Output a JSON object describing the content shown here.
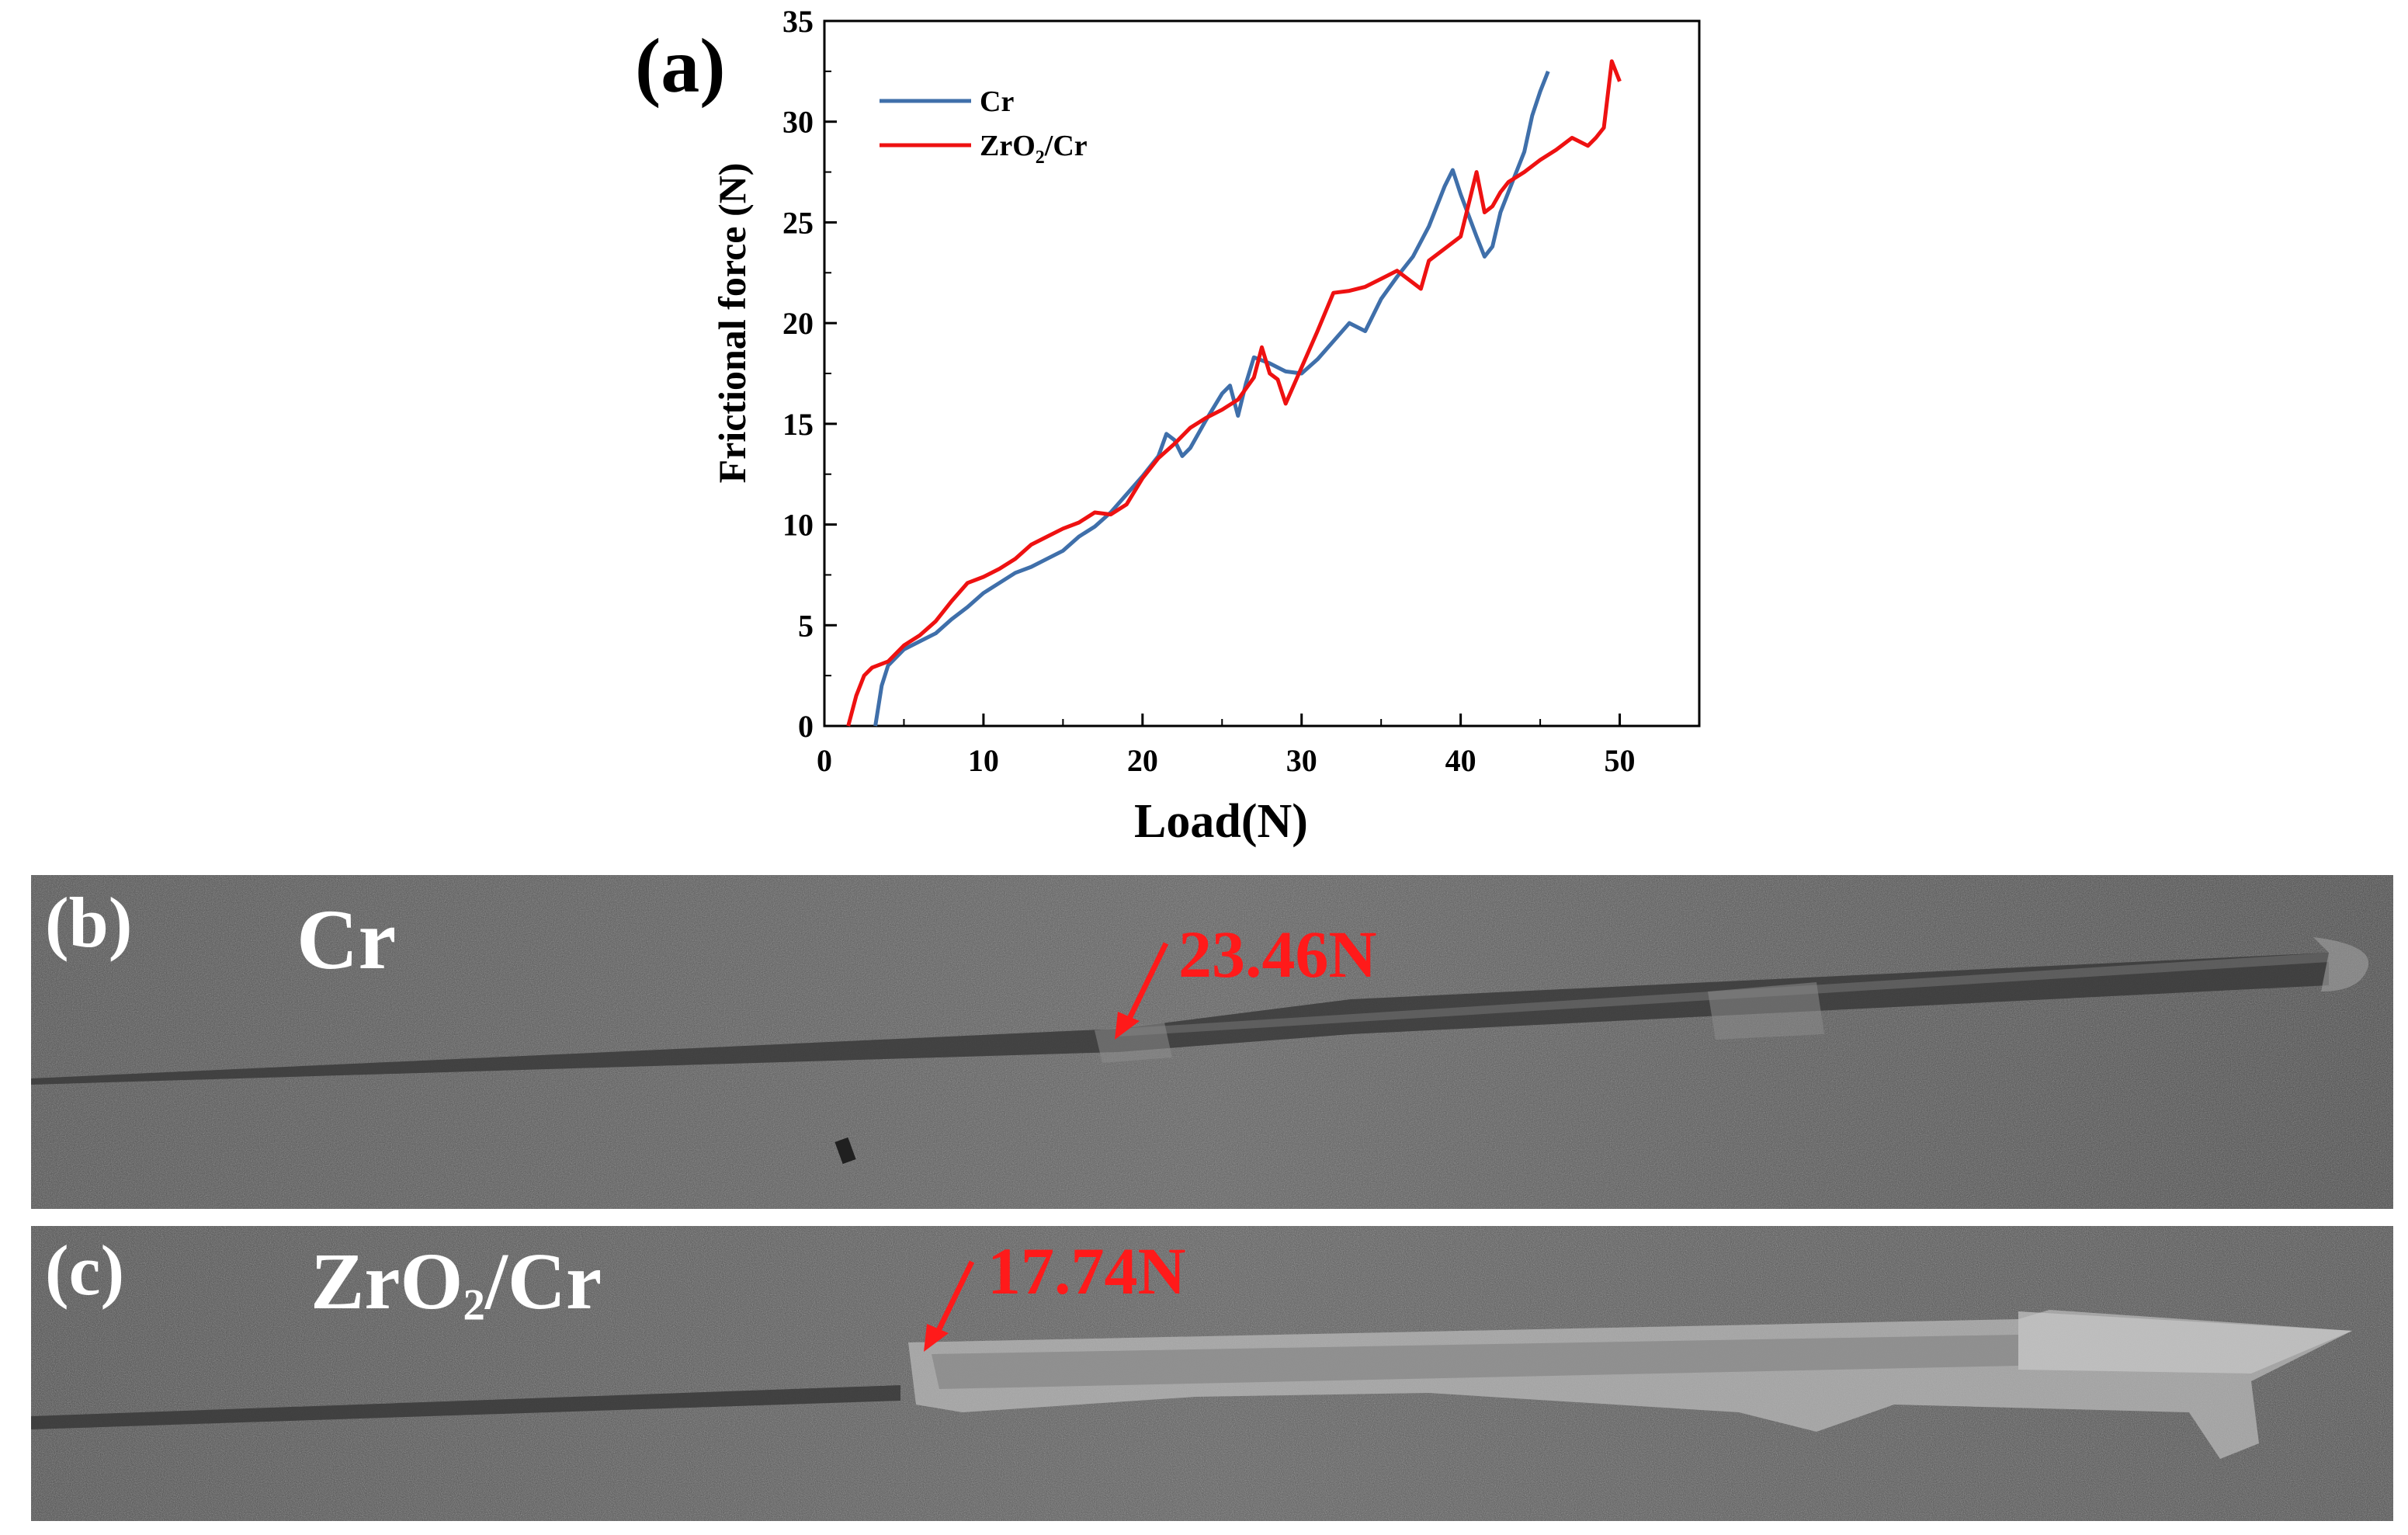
{
  "figure": {
    "panel_a_label": "(a)",
    "panel_b_label": "(b)",
    "panel_c_label": "(c)"
  },
  "chart_data": {
    "type": "line",
    "title": "",
    "xlabel": "Load(N)",
    "ylabel": "Frictional force (N)",
    "xlim": [
      0,
      55
    ],
    "ylim": [
      0,
      35
    ],
    "xticks": [
      0,
      10,
      20,
      30,
      40,
      50
    ],
    "yticks": [
      0,
      5,
      10,
      15,
      20,
      25,
      30,
      35
    ],
    "legend_position": "top-left",
    "series": [
      {
        "name": "Cr",
        "color": "#3f6faa",
        "x": [
          3.2,
          3.6,
          4,
          5,
          6,
          7,
          8,
          9,
          10,
          11,
          12,
          13,
          14,
          15,
          16,
          17,
          18,
          19,
          20,
          21,
          21.5,
          22,
          22.5,
          23,
          24,
          25,
          25.5,
          26,
          26.5,
          27,
          28,
          29,
          30,
          31,
          32,
          33,
          34,
          35,
          36,
          37,
          38,
          39,
          39.5,
          40,
          41,
          41.5,
          42,
          42.5,
          43,
          44,
          44.5,
          45,
          45.5
        ],
        "y": [
          0,
          2.0,
          3.0,
          3.8,
          4.2,
          4.6,
          5.3,
          5.9,
          6.6,
          7.1,
          7.6,
          7.9,
          8.3,
          8.7,
          9.4,
          9.9,
          10.6,
          11.5,
          12.4,
          13.4,
          14.5,
          14.2,
          13.4,
          13.8,
          15.2,
          16.5,
          16.9,
          15.4,
          17.0,
          18.3,
          18.0,
          17.6,
          17.5,
          18.2,
          19.1,
          20.0,
          19.6,
          21.2,
          22.3,
          23.3,
          24.8,
          26.8,
          27.6,
          26.4,
          24.3,
          23.3,
          23.8,
          25.5,
          26.5,
          28.5,
          30.3,
          31.5,
          32.5
        ]
      },
      {
        "name": "ZrO2/Cr",
        "color": "#ee1111",
        "x": [
          1.5,
          2,
          2.5,
          3,
          4,
          5,
          6,
          7,
          8,
          9,
          10,
          11,
          12,
          13,
          14,
          15,
          16,
          17,
          18,
          19,
          20,
          21,
          22,
          23,
          24,
          25,
          26,
          27,
          27.5,
          28,
          28.5,
          29,
          30,
          31,
          32,
          33,
          34,
          35,
          36,
          37,
          37.5,
          38,
          39,
          40,
          41,
          41.5,
          42,
          42.5,
          43,
          44,
          45,
          46,
          47,
          48,
          48.5,
          49,
          49.5,
          50
        ],
        "y": [
          0,
          1.5,
          2.5,
          2.9,
          3.2,
          4.0,
          4.5,
          5.2,
          6.2,
          7.1,
          7.4,
          7.8,
          8.3,
          9.0,
          9.4,
          9.8,
          10.1,
          10.6,
          10.5,
          11.0,
          12.3,
          13.3,
          14.0,
          14.8,
          15.3,
          15.7,
          16.2,
          17.3,
          18.8,
          17.5,
          17.2,
          16.0,
          17.8,
          19.6,
          21.5,
          21.6,
          21.8,
          22.2,
          22.6,
          22.0,
          21.7,
          23.1,
          23.7,
          24.3,
          27.5,
          25.5,
          25.8,
          26.5,
          27.0,
          27.5,
          28.1,
          28.6,
          29.2,
          28.8,
          29.2,
          29.7,
          33.0,
          32.0
        ]
      }
    ]
  },
  "micrographs": [
    {
      "label": "Cr",
      "critical_load": "23.46N"
    },
    {
      "label_main": "ZrO",
      "label_sub": "2",
      "label_tail": "/Cr",
      "critical_load": "17.74N"
    }
  ],
  "legend": {
    "cr": "Cr",
    "zr_main": "ZrO",
    "zr_sub": "2",
    "zr_tail": "/Cr"
  },
  "colors": {
    "cr_line": "#3f6faa",
    "zr_line": "#ee1111",
    "annotation": "#ff1a1a",
    "sem_background": "#5a5a5a"
  }
}
